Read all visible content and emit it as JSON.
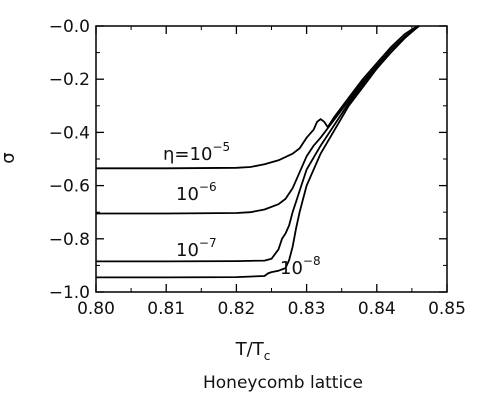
{
  "chart_data": {
    "type": "line",
    "xlabel_main": "T/T",
    "xlabel_sub": "c",
    "ylabel": "σ",
    "caption": "Honeycomb lattice",
    "xlim": [
      0.8,
      0.85
    ],
    "ylim": [
      -1.0,
      0.0
    ],
    "x_ticks": [
      "0.80",
      "0.81",
      "0.82",
      "0.83",
      "0.84",
      "0.85"
    ],
    "x_tick_values": [
      0.8,
      0.81,
      0.82,
      0.83,
      0.84,
      0.85
    ],
    "y_ticks": [
      "-1.0",
      "-0.8",
      "-0.6",
      "-0.4",
      "-0.2",
      "-0.0"
    ],
    "y_tick_values": [
      -1.0,
      -0.8,
      -0.6,
      -0.4,
      -0.2,
      0.0
    ],
    "legend": "none",
    "grid": false,
    "series": [
      {
        "annotation_base": "η=10",
        "annotation_exp": "−5",
        "x": [
          0.8,
          0.81,
          0.82,
          0.822,
          0.824,
          0.826,
          0.828,
          0.829,
          0.83,
          0.831,
          0.8315,
          0.832,
          0.8325,
          0.833,
          0.834,
          0.836,
          0.838,
          0.84,
          0.842,
          0.844,
          0.8455,
          0.846
        ],
        "y": [
          -0.535,
          -0.535,
          -0.533,
          -0.53,
          -0.52,
          -0.505,
          -0.48,
          -0.46,
          -0.42,
          -0.39,
          -0.36,
          -0.35,
          -0.36,
          -0.38,
          -0.34,
          -0.27,
          -0.2,
          -0.14,
          -0.08,
          -0.03,
          -0.005,
          0.0
        ]
      },
      {
        "annotation_base": "10",
        "annotation_exp": "−6",
        "x": [
          0.8,
          0.81,
          0.82,
          0.822,
          0.824,
          0.826,
          0.827,
          0.828,
          0.8285,
          0.829,
          0.8295,
          0.83,
          0.8305,
          0.831,
          0.832,
          0.834,
          0.836,
          0.838,
          0.84,
          0.842,
          0.844,
          0.846
        ],
        "y": [
          -0.705,
          -0.705,
          -0.703,
          -0.7,
          -0.69,
          -0.67,
          -0.65,
          -0.61,
          -0.58,
          -0.55,
          -0.52,
          -0.49,
          -0.47,
          -0.45,
          -0.42,
          -0.35,
          -0.28,
          -0.21,
          -0.15,
          -0.09,
          -0.04,
          0.0
        ]
      },
      {
        "annotation_base": "10",
        "annotation_exp": "−7",
        "x": [
          0.8,
          0.81,
          0.82,
          0.824,
          0.825,
          0.826,
          0.8265,
          0.827,
          0.8275,
          0.828,
          0.8285,
          0.829,
          0.83,
          0.832,
          0.834,
          0.836,
          0.838,
          0.84,
          0.842,
          0.844,
          0.846
        ],
        "y": [
          -0.885,
          -0.885,
          -0.884,
          -0.882,
          -0.875,
          -0.84,
          -0.8,
          -0.78,
          -0.75,
          -0.7,
          -0.66,
          -0.62,
          -0.54,
          -0.45,
          -0.37,
          -0.29,
          -0.22,
          -0.15,
          -0.09,
          -0.04,
          0.0
        ]
      },
      {
        "annotation_base": "10",
        "annotation_exp": "−8",
        "x": [
          0.8,
          0.81,
          0.82,
          0.824,
          0.8245,
          0.825,
          0.826,
          0.827,
          0.8275,
          0.828,
          0.8285,
          0.829,
          0.83,
          0.832,
          0.834,
          0.836,
          0.838,
          0.84,
          0.842,
          0.844,
          0.846
        ],
        "y": [
          -0.945,
          -0.945,
          -0.944,
          -0.94,
          -0.93,
          -0.925,
          -0.92,
          -0.91,
          -0.88,
          -0.83,
          -0.76,
          -0.7,
          -0.6,
          -0.48,
          -0.39,
          -0.3,
          -0.23,
          -0.16,
          -0.1,
          -0.045,
          0.0
        ]
      }
    ]
  }
}
